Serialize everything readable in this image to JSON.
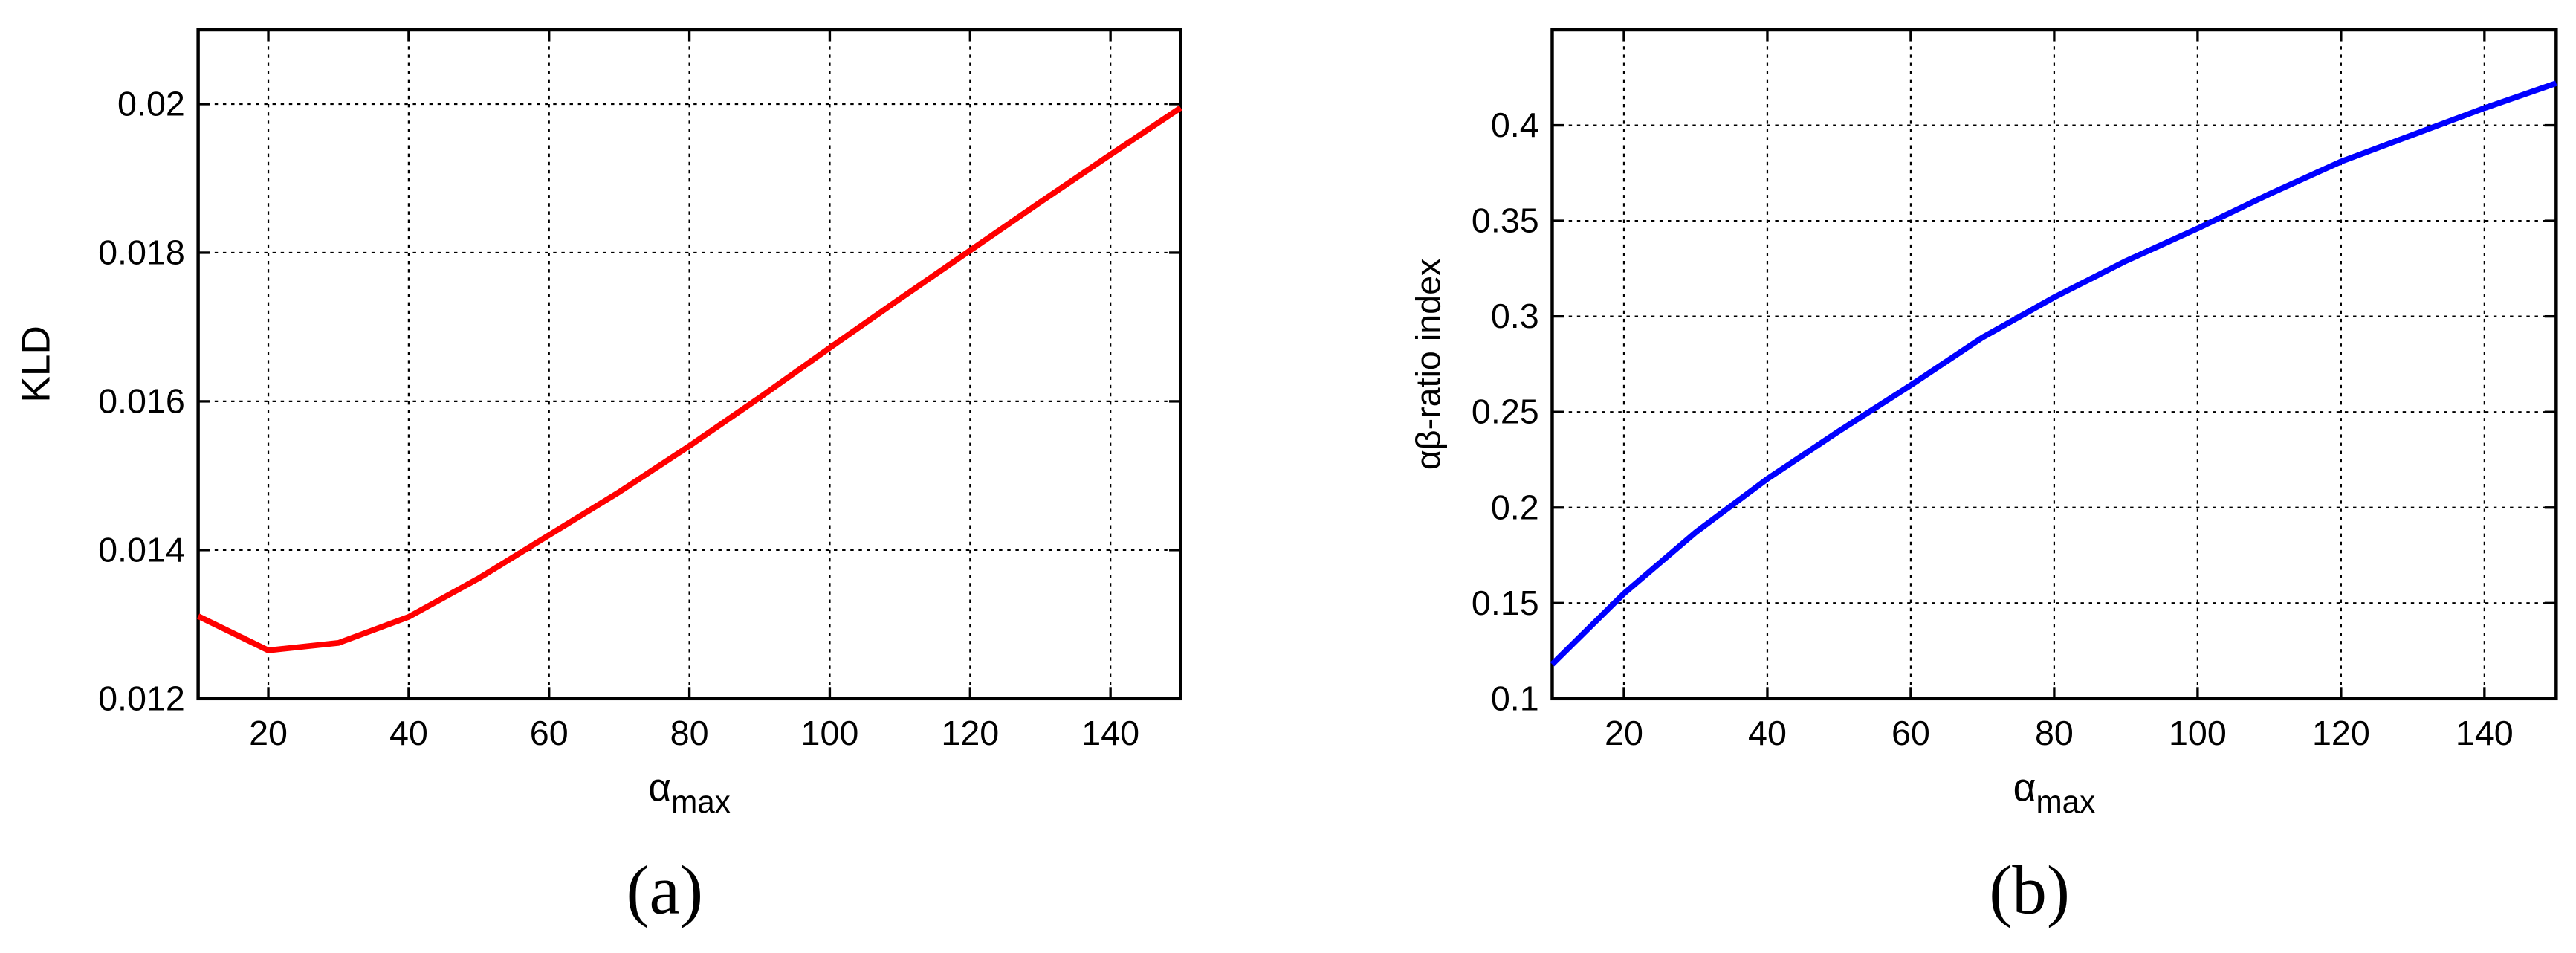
{
  "chart_data": [
    {
      "type": "line",
      "caption": "(a)",
      "ylabel": "KLD",
      "xlabel": "α",
      "xlabel_sub": "max",
      "x": [
        10,
        20,
        30,
        40,
        50,
        60,
        70,
        80,
        90,
        100,
        110,
        120,
        130,
        140,
        150
      ],
      "series": [
        {
          "color": "#ff0000",
          "values": [
            0.01311,
            0.01265,
            0.01275,
            0.0131,
            0.01362,
            0.0142,
            0.01478,
            0.0154,
            0.01605,
            0.01672,
            0.01738,
            0.01803,
            0.01868,
            0.01932,
            0.01995
          ]
        }
      ],
      "xlim": [
        10,
        150
      ],
      "xticks": [
        20,
        40,
        60,
        80,
        100,
        120,
        140
      ],
      "ylim": [
        0.012,
        0.021
      ],
      "yticks": [
        0.012,
        0.014,
        0.016,
        0.018,
        0.02
      ],
      "grid": true
    },
    {
      "type": "line",
      "caption": "(b)",
      "ylabel": "αβ-ratio index",
      "xlabel": "α",
      "xlabel_sub": "max",
      "x": [
        10,
        20,
        30,
        40,
        50,
        60,
        70,
        80,
        90,
        100,
        110,
        120,
        130,
        140,
        150
      ],
      "series": [
        {
          "color": "#0000ff",
          "values": [
            0.118,
            0.155,
            0.187,
            0.215,
            0.24,
            0.264,
            0.289,
            0.31,
            0.329,
            0.346,
            0.364,
            0.381,
            0.395,
            0.409,
            0.422
          ]
        }
      ],
      "xlim": [
        10,
        150
      ],
      "xticks": [
        20,
        40,
        60,
        80,
        100,
        120,
        140
      ],
      "ylim": [
        0.1,
        0.45
      ],
      "yticks": [
        0.1,
        0.15,
        0.2,
        0.25,
        0.3,
        0.35,
        0.4
      ],
      "grid": true
    }
  ]
}
